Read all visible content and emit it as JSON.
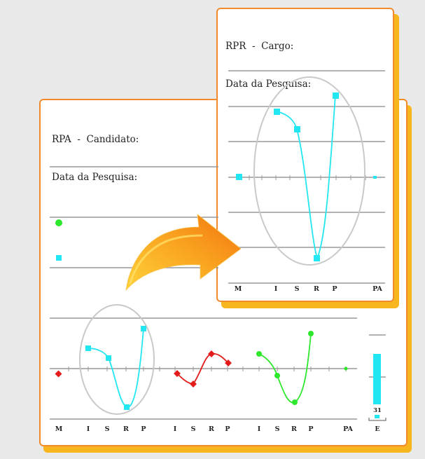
{
  "colors": {
    "frame": "#f08a2c",
    "shadow": "#f7b51e",
    "cyan": "#22e6f2",
    "red": "#e31b1b",
    "green": "#2ee82e",
    "arrow": "#f7891d"
  },
  "rpa_card": {
    "title_line1": "RPA  -  Candidato:",
    "title_line2": "Data da Pesquisa:",
    "axis_labels": [
      "M",
      "I",
      "S",
      "R",
      "P",
      "I",
      "S",
      "R",
      "P",
      "I",
      "S",
      "R",
      "P",
      "PA",
      "E"
    ],
    "e_value": "31"
  },
  "rpr_card": {
    "title_line1": "RPR  -  Cargo:",
    "title_line2": "Data da Pesquisa:",
    "axis_labels": [
      "M",
      "I",
      "S",
      "R",
      "P",
      "PA"
    ]
  },
  "arrow_icon": "curved-arrow-right"
}
